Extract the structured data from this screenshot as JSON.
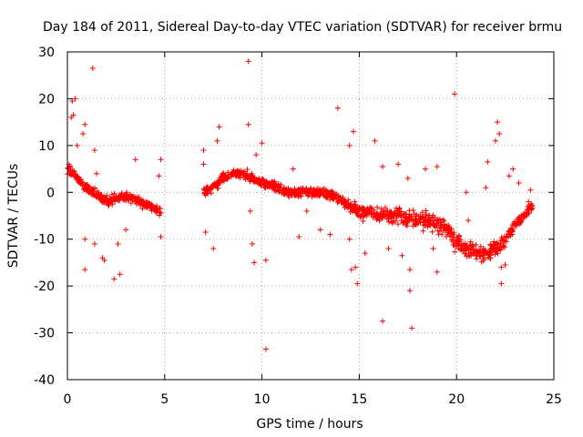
{
  "chart_data": {
    "type": "scatter",
    "title": "Day 184 of 2011, Sidereal Day-to-day VTEC variation (SDTVAR) for receiver brmu",
    "xlabel": "GPS time / hours",
    "ylabel": "SDTVAR / TECUs",
    "xlim": [
      0,
      25
    ],
    "ylim": [
      -40,
      30
    ],
    "xticks": [
      0,
      5,
      10,
      15,
      20,
      25
    ],
    "xtick_labels": [
      "0",
      "5",
      "10",
      "15",
      "20",
      "25"
    ],
    "yticks": [
      -40,
      -30,
      -20,
      -10,
      0,
      10,
      20,
      30
    ],
    "ytick_labels": [
      "-40",
      "-30",
      "-20",
      "-10",
      "0",
      "10",
      "20",
      "30"
    ],
    "grid": true,
    "marker": "+",
    "color": "#ff0000",
    "series": [
      {
        "name": "SDTVAR",
        "trend": [
          [
            0.0,
            5
          ],
          [
            0.3,
            4
          ],
          [
            0.6,
            2.5
          ],
          [
            1.0,
            1
          ],
          [
            1.4,
            0
          ],
          [
            1.8,
            -1.5
          ],
          [
            2.1,
            -2
          ],
          [
            2.5,
            -1
          ],
          [
            3.0,
            -1
          ],
          [
            3.5,
            -1.5
          ],
          [
            4.0,
            -2.5
          ],
          [
            4.5,
            -3.5
          ],
          [
            4.8,
            -4.5
          ],
          [
            7.0,
            0
          ],
          [
            7.5,
            1
          ],
          [
            8.0,
            3
          ],
          [
            8.5,
            4
          ],
          [
            9.0,
            4
          ],
          [
            9.5,
            3
          ],
          [
            10.0,
            2
          ],
          [
            10.5,
            1.5
          ],
          [
            11.0,
            0.5
          ],
          [
            11.5,
            0
          ],
          [
            12.0,
            0
          ],
          [
            12.5,
            0
          ],
          [
            13.0,
            0
          ],
          [
            13.5,
            -0.5
          ],
          [
            14.0,
            -1.5
          ],
          [
            14.5,
            -3
          ],
          [
            15.0,
            -4
          ],
          [
            15.5,
            -4.5
          ],
          [
            16.0,
            -5
          ],
          [
            16.5,
            -5
          ],
          [
            17.0,
            -5
          ],
          [
            17.5,
            -6
          ],
          [
            18.0,
            -6
          ],
          [
            18.5,
            -6
          ],
          [
            19.0,
            -6.5
          ],
          [
            19.5,
            -8
          ],
          [
            20.0,
            -10.5
          ],
          [
            20.5,
            -12
          ],
          [
            21.0,
            -13
          ],
          [
            21.5,
            -13
          ],
          [
            22.0,
            -12
          ],
          [
            22.5,
            -10
          ],
          [
            23.0,
            -7
          ],
          [
            23.5,
            -5
          ],
          [
            23.9,
            -3
          ]
        ],
        "outliers": [
          [
            0.2,
            16
          ],
          [
            0.3,
            16.5
          ],
          [
            0.25,
            19.5
          ],
          [
            0.4,
            20
          ],
          [
            0.5,
            10
          ],
          [
            0.9,
            14.5
          ],
          [
            0.8,
            12.5
          ],
          [
            1.3,
            26.5
          ],
          [
            1.4,
            9
          ],
          [
            1.5,
            4
          ],
          [
            0.9,
            -10
          ],
          [
            0.9,
            -16.5
          ],
          [
            1.8,
            -14
          ],
          [
            1.9,
            -14.5
          ],
          [
            2.4,
            -18.5
          ],
          [
            2.7,
            -17.5
          ],
          [
            1.4,
            -11
          ],
          [
            2.6,
            -11
          ],
          [
            3.5,
            7
          ],
          [
            4.8,
            7
          ],
          [
            4.8,
            -9.5
          ],
          [
            4.7,
            3.5
          ],
          [
            3.0,
            -8
          ],
          [
            7.0,
            9
          ],
          [
            7.0,
            6
          ],
          [
            7.1,
            -8.5
          ],
          [
            7.5,
            -12
          ],
          [
            7.8,
            14
          ],
          [
            7.7,
            11
          ],
          [
            9.3,
            28
          ],
          [
            9.3,
            14.5
          ],
          [
            9.4,
            -4
          ],
          [
            9.5,
            -11
          ],
          [
            9.6,
            -15
          ],
          [
            9.7,
            8
          ],
          [
            10.2,
            -14.5
          ],
          [
            10.2,
            -33.5
          ],
          [
            10.0,
            10.5
          ],
          [
            11.6,
            5
          ],
          [
            11.9,
            -9.5
          ],
          [
            12.3,
            -4
          ],
          [
            13.0,
            -8
          ],
          [
            13.5,
            -9
          ],
          [
            13.9,
            18
          ],
          [
            14.3,
            -2
          ],
          [
            14.5,
            10
          ],
          [
            14.5,
            -10
          ],
          [
            14.6,
            -16.5
          ],
          [
            14.8,
            -16
          ],
          [
            14.7,
            13
          ],
          [
            14.9,
            -19.5
          ],
          [
            15.3,
            -13
          ],
          [
            15.8,
            11
          ],
          [
            16.2,
            5.5
          ],
          [
            16.2,
            -27.5
          ],
          [
            16.5,
            -12
          ],
          [
            17.0,
            6
          ],
          [
            17.2,
            -13.5
          ],
          [
            17.5,
            3
          ],
          [
            17.6,
            -21
          ],
          [
            17.7,
            -29
          ],
          [
            17.6,
            -16.5
          ],
          [
            18.4,
            5
          ],
          [
            18.8,
            -12
          ],
          [
            19.0,
            -17
          ],
          [
            19.0,
            5.5
          ],
          [
            19.8,
            -10.5
          ],
          [
            19.9,
            21
          ],
          [
            20.5,
            0
          ],
          [
            20.6,
            -6
          ],
          [
            21.5,
            1
          ],
          [
            21.6,
            6.5
          ],
          [
            22.0,
            11
          ],
          [
            22.1,
            15
          ],
          [
            22.2,
            12.5
          ],
          [
            22.3,
            -16
          ],
          [
            22.3,
            -19.5
          ],
          [
            22.5,
            -15.5
          ],
          [
            22.7,
            3.5
          ],
          [
            22.9,
            5
          ],
          [
            23.2,
            2
          ],
          [
            23.3,
            -6
          ],
          [
            23.7,
            -2
          ],
          [
            23.8,
            0.5
          ]
        ]
      }
    ]
  }
}
